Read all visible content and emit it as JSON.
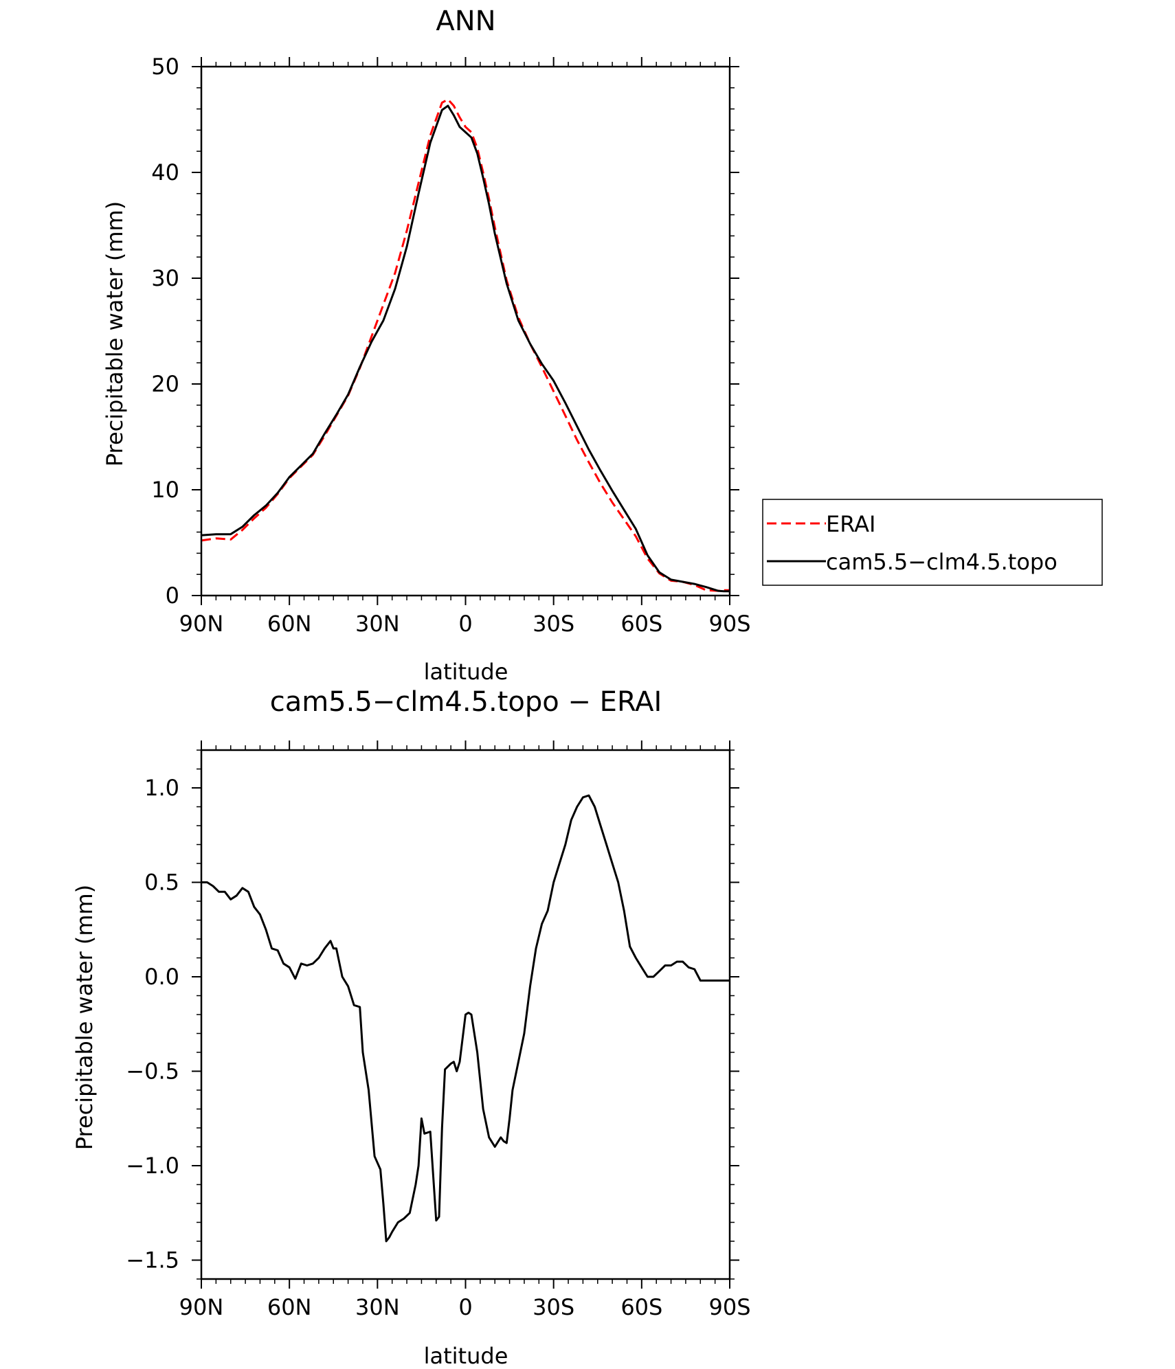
{
  "chart_data": [
    {
      "type": "line",
      "title": "ANN",
      "xlabel": "latitude",
      "ylabel": "Precipitable water (mm)",
      "x_ticks": [
        "90N",
        "60N",
        "30N",
        "0",
        "30S",
        "60S",
        "90S"
      ],
      "x_tick_values": [
        90,
        60,
        30,
        0,
        -30,
        -60,
        -90
      ],
      "xlim": [
        90,
        -90
      ],
      "y_ticks": [
        "0",
        "10",
        "20",
        "30",
        "40",
        "50"
      ],
      "ylim": [
        0,
        50
      ],
      "grid": false,
      "legend": {
        "placement": "right-outside",
        "entries": [
          "ERAI",
          "cam5.5−clm4.5.topo"
        ]
      },
      "series": [
        {
          "name": "ERAI",
          "color": "#ff0000",
          "style": "dashed",
          "x": [
            90,
            85,
            80,
            76,
            72,
            68,
            64,
            60,
            56,
            52,
            48,
            44,
            40,
            36,
            32,
            28,
            24,
            20,
            16,
            12,
            8,
            6,
            4,
            2,
            0,
            -2,
            -4,
            -6,
            -8,
            -10,
            -14,
            -18,
            -22,
            -26,
            -30,
            -34,
            -38,
            -42,
            -46,
            -50,
            -54,
            -58,
            -62,
            -66,
            -70,
            -74,
            -78,
            -82,
            -86,
            -88,
            -90
          ],
          "y": [
            5.2,
            5.4,
            5.3,
            6.2,
            7.3,
            8.3,
            9.6,
            11.1,
            12.2,
            13.3,
            15.1,
            17.0,
            18.9,
            21.5,
            24.5,
            27.5,
            30.5,
            34.5,
            39.0,
            43.5,
            46.6,
            46.9,
            46.3,
            45.2,
            44.3,
            43.8,
            42.3,
            40.0,
            37.5,
            34.8,
            29.8,
            26.3,
            23.8,
            21.6,
            19.3,
            17.0,
            14.7,
            12.6,
            10.6,
            8.8,
            7.2,
            5.6,
            3.5,
            2.1,
            1.4,
            1.3,
            1.0,
            0.5,
            0.45,
            0.5,
            0.5
          ]
        },
        {
          "name": "cam5.5−clm4.5.topo",
          "color": "#000000",
          "style": "solid",
          "x": [
            90,
            85,
            80,
            76,
            72,
            68,
            64,
            60,
            56,
            52,
            48,
            44,
            40,
            36,
            32,
            28,
            24,
            20,
            16,
            12,
            8,
            6,
            4,
            2,
            0,
            -2,
            -4,
            -6,
            -8,
            -10,
            -14,
            -18,
            -22,
            -26,
            -30,
            -34,
            -38,
            -42,
            -46,
            -50,
            -54,
            -58,
            -62,
            -66,
            -70,
            -74,
            -78,
            -82,
            -86,
            -88,
            -90
          ],
          "y": [
            5.7,
            5.8,
            5.8,
            6.5,
            7.6,
            8.5,
            9.7,
            11.2,
            12.3,
            13.4,
            15.3,
            17.1,
            19.0,
            21.6,
            24.0,
            26.0,
            29.0,
            33.0,
            38.0,
            42.8,
            45.9,
            46.3,
            45.4,
            44.3,
            43.8,
            43.3,
            41.8,
            39.5,
            37.0,
            34.2,
            29.5,
            26.0,
            23.8,
            21.9,
            20.3,
            18.2,
            16.0,
            13.8,
            11.8,
            9.9,
            8.1,
            6.3,
            3.8,
            2.2,
            1.5,
            1.3,
            1.1,
            0.8,
            0.45,
            0.4,
            0.4
          ]
        }
      ]
    },
    {
      "type": "line",
      "title": "cam5.5−clm4.5.topo − ERAI",
      "xlabel": "latitude",
      "ylabel": "Precipitable water (mm)",
      "x_ticks": [
        "90N",
        "60N",
        "30N",
        "0",
        "30S",
        "60S",
        "90S"
      ],
      "x_tick_values": [
        90,
        60,
        30,
        0,
        -30,
        -60,
        -90
      ],
      "xlim": [
        90,
        -90
      ],
      "y_ticks": [
        "−1.5",
        "−1.0",
        "−0.5",
        "0.0",
        "0.5",
        "1.0"
      ],
      "y_tick_values": [
        -1.5,
        -1.0,
        -0.5,
        0.0,
        0.5,
        1.0
      ],
      "ylim": [
        -1.6,
        1.2
      ],
      "grid": false,
      "series": [
        {
          "color": "#000000",
          "style": "solid",
          "x": [
            90,
            88,
            86,
            84,
            82,
            80,
            78,
            76,
            74,
            72,
            70,
            68,
            66,
            64,
            62,
            60,
            58,
            56,
            54,
            52,
            50,
            48,
            46,
            45,
            44,
            42,
            40,
            38,
            36,
            35,
            33,
            31,
            29,
            28,
            27,
            26,
            25,
            23,
            21,
            19,
            17,
            16,
            15,
            14,
            12,
            10,
            9,
            8,
            7,
            5,
            4,
            3,
            2,
            0,
            -1,
            -2,
            -4,
            -6,
            -8,
            -10,
            -12,
            -13,
            -14,
            -15,
            -16,
            -18,
            -20,
            -22,
            -24,
            -26,
            -28,
            -30,
            -32,
            -34,
            -36,
            -38,
            -40,
            -42,
            -44,
            -46,
            -48,
            -50,
            -52,
            -54,
            -56,
            -58,
            -60,
            -62,
            -64,
            -66,
            -68,
            -70,
            -72,
            -74,
            -76,
            -78,
            -80,
            -82,
            -84,
            -86,
            -88,
            -90
          ],
          "y": [
            0.5,
            0.5,
            0.48,
            0.45,
            0.45,
            0.41,
            0.43,
            0.47,
            0.45,
            0.37,
            0.33,
            0.25,
            0.15,
            0.14,
            0.07,
            0.05,
            -0.01,
            0.07,
            0.06,
            0.07,
            0.1,
            0.15,
            0.19,
            0.15,
            0.15,
            0.0,
            -0.05,
            -0.15,
            -0.16,
            -0.4,
            -0.6,
            -0.95,
            -1.02,
            -1.2,
            -1.4,
            -1.38,
            -1.35,
            -1.3,
            -1.28,
            -1.25,
            -1.1,
            -1.0,
            -0.75,
            -0.83,
            -0.82,
            -1.29,
            -1.27,
            -0.8,
            -0.49,
            -0.46,
            -0.45,
            -0.5,
            -0.45,
            -0.2,
            -0.19,
            -0.2,
            -0.4,
            -0.7,
            -0.85,
            -0.9,
            -0.85,
            -0.87,
            -0.88,
            -0.75,
            -0.6,
            -0.45,
            -0.3,
            -0.05,
            0.15,
            0.28,
            0.35,
            0.5,
            0.6,
            0.7,
            0.83,
            0.9,
            0.95,
            0.96,
            0.9,
            0.8,
            0.7,
            0.6,
            0.5,
            0.35,
            0.16,
            0.1,
            0.05,
            0.0,
            0.0,
            0.03,
            0.06,
            0.06,
            0.08,
            0.08,
            0.05,
            0.04,
            -0.02,
            -0.02,
            -0.02,
            -0.02,
            -0.02,
            -0.02
          ]
        }
      ]
    }
  ]
}
